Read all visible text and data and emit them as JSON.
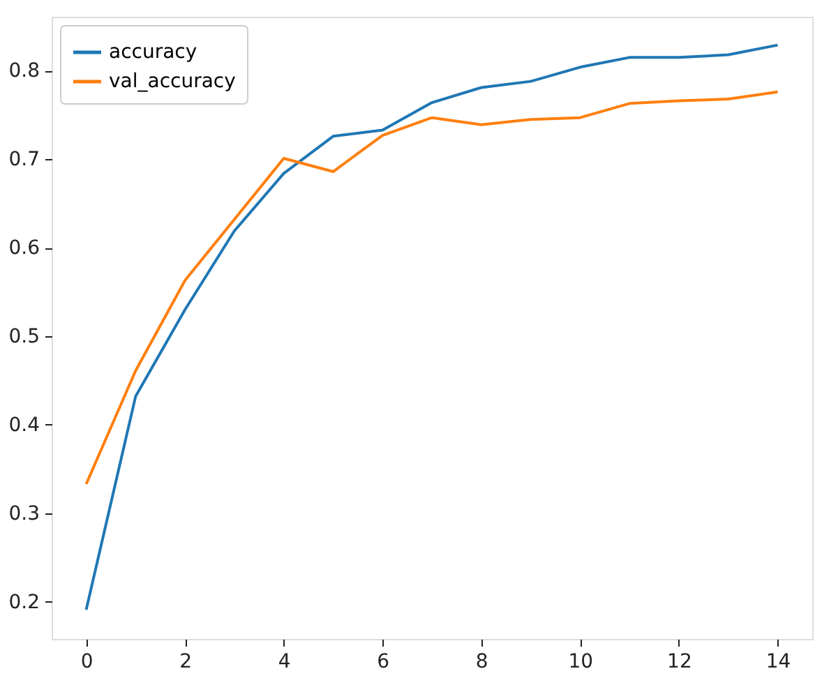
{
  "chart_data": {
    "type": "line",
    "x": [
      0,
      1,
      2,
      3,
      4,
      5,
      6,
      7,
      8,
      9,
      10,
      11,
      12,
      13,
      14
    ],
    "series": [
      {
        "name": "accuracy",
        "color": "#1f77b4",
        "values": [
          0.191,
          0.432,
          0.53,
          0.619,
          0.684,
          0.726,
          0.733,
          0.764,
          0.781,
          0.788,
          0.804,
          0.815,
          0.815,
          0.818,
          0.829
        ]
      },
      {
        "name": "val_accuracy",
        "color": "#ff7f0e",
        "values": [
          0.333,
          0.461,
          0.563,
          0.632,
          0.701,
          0.686,
          0.727,
          0.747,
          0.739,
          0.745,
          0.747,
          0.763,
          0.766,
          0.768,
          0.776
        ]
      }
    ],
    "xlim": [
      -0.7,
      14.7
    ],
    "ylim": [
      0.158,
      0.861
    ],
    "xticks": [
      0,
      2,
      4,
      6,
      8,
      10,
      12,
      14
    ],
    "yticks": [
      0.2,
      0.3,
      0.4,
      0.5,
      0.6,
      0.7,
      0.8
    ],
    "grid": false,
    "legend": "top left",
    "marker": "none",
    "line_style": "solid"
  }
}
